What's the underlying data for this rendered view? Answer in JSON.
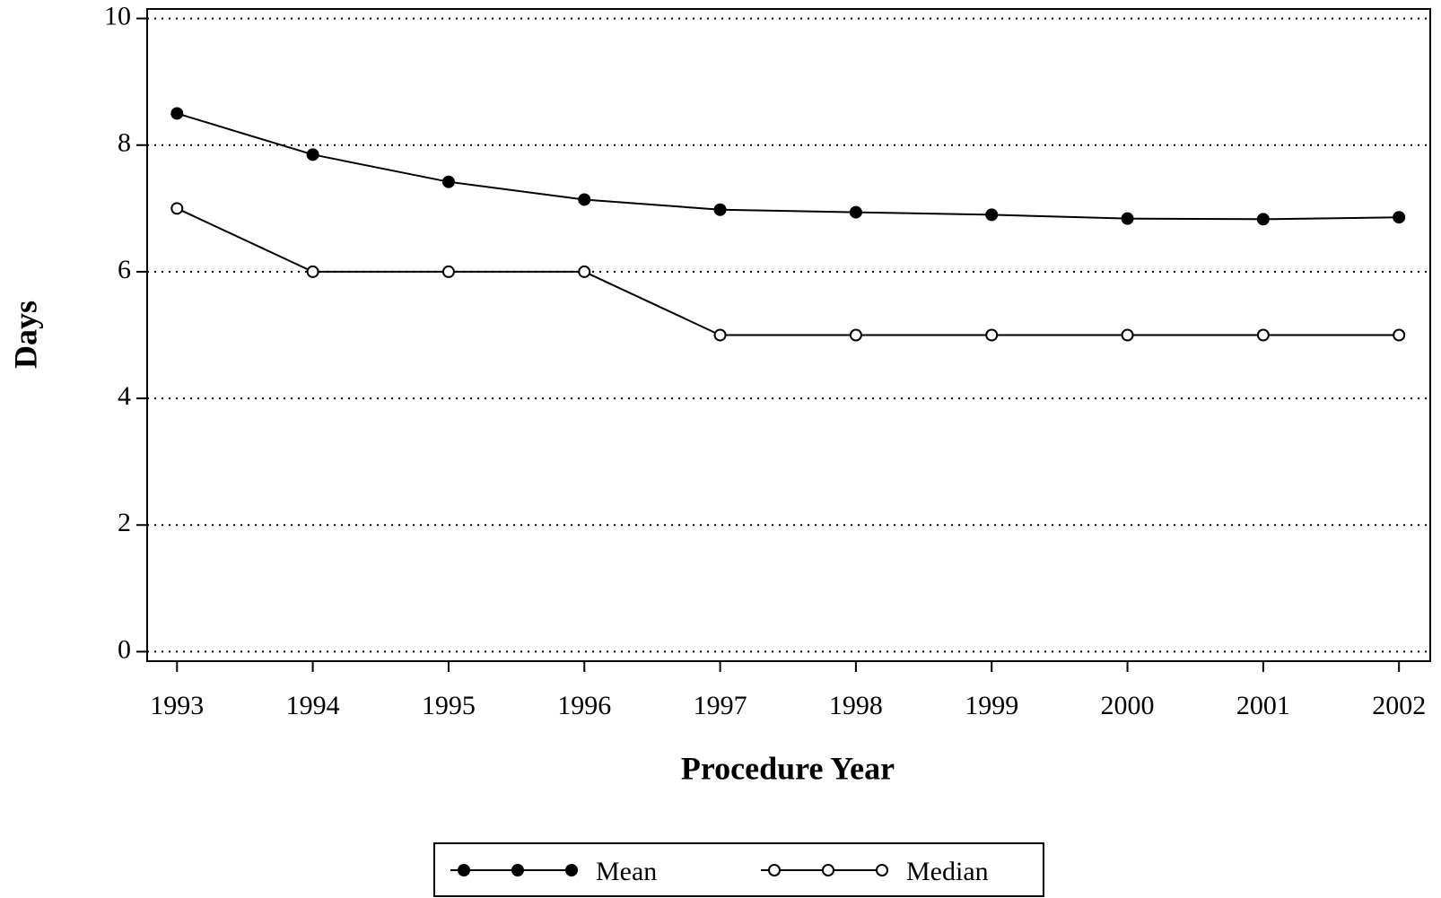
{
  "chart_data": {
    "type": "line",
    "x_label": "Procedure Year",
    "y_label": "Days",
    "x": [
      1993,
      1994,
      1995,
      1996,
      1997,
      1998,
      1999,
      2000,
      2001,
      2002
    ],
    "series": [
      {
        "name": "Mean",
        "color": "#000000",
        "marker": "filled-circle",
        "values": [
          8.5,
          7.85,
          7.42,
          7.14,
          6.98,
          6.94,
          6.9,
          6.84,
          6.83,
          6.86
        ]
      },
      {
        "name": "Median",
        "color": "#000000",
        "marker": "open-circle",
        "values": [
          7,
          6,
          6,
          6,
          5,
          5,
          5,
          5,
          5,
          5
        ]
      }
    ],
    "xlim": [
      1992.78,
      2002.23
    ],
    "xticks": [
      1993,
      1994,
      1995,
      1996,
      1997,
      1998,
      1999,
      2000,
      2001,
      2002
    ],
    "ylim": [
      -0.15,
      10.15
    ],
    "yticks": [
      0,
      2,
      4,
      6,
      8,
      10
    ],
    "grid": true,
    "legend": "bottom"
  }
}
